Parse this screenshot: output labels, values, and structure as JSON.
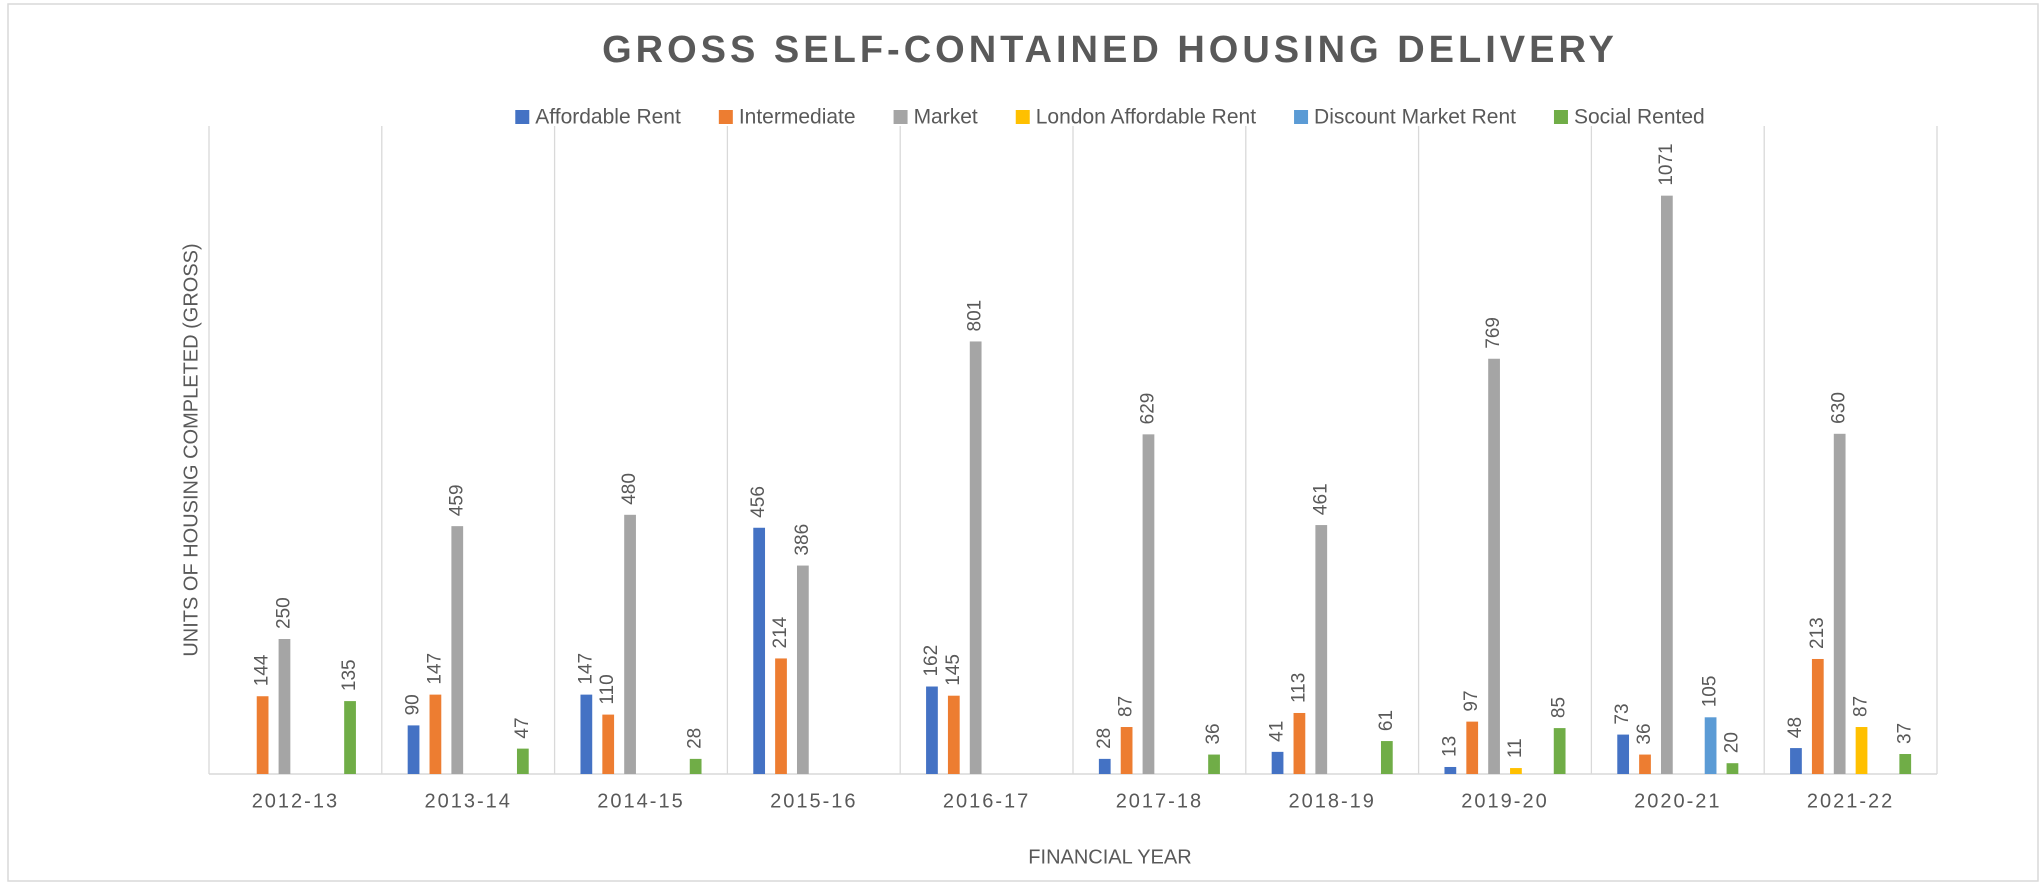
{
  "chart_data": {
    "type": "bar",
    "title": "GROSS SELF-CONTAINED HOUSING DELIVERY",
    "x_label": "FINANCIAL YEAR",
    "y_label": "UNITS OF HOUSING COMPLETED (GROSS)",
    "categories": [
      "2012-13",
      "2013-14",
      "2014-15",
      "2015-16",
      "2016-17",
      "2017-18",
      "2018-19",
      "2019-20",
      "2020-21",
      "2021-22"
    ],
    "series": [
      {
        "name": "Affordable Rent",
        "color": "#4472c4",
        "values": [
          null,
          90,
          147,
          456,
          162,
          28,
          41,
          13,
          73,
          48
        ]
      },
      {
        "name": "Intermediate",
        "color": "#ed7d31",
        "values": [
          144,
          147,
          110,
          214,
          145,
          87,
          113,
          97,
          36,
          213
        ]
      },
      {
        "name": "Market",
        "color": "#a5a5a5",
        "values": [
          250,
          459,
          480,
          386,
          801,
          629,
          461,
          769,
          1071,
          630
        ]
      },
      {
        "name": "London Affordable Rent",
        "color": "#ffc000",
        "values": [
          null,
          null,
          null,
          null,
          null,
          null,
          null,
          11,
          null,
          87
        ]
      },
      {
        "name": "Discount Market Rent",
        "color": "#5b9bd5",
        "values": [
          null,
          null,
          null,
          null,
          null,
          null,
          null,
          null,
          105,
          null
        ]
      },
      {
        "name": "Social Rented",
        "color": "#70ad47",
        "values": [
          135,
          47,
          28,
          null,
          null,
          36,
          61,
          85,
          20,
          37
        ]
      }
    ],
    "ylim": [
      0,
      1200
    ],
    "legend": "top",
    "grid": true
  }
}
